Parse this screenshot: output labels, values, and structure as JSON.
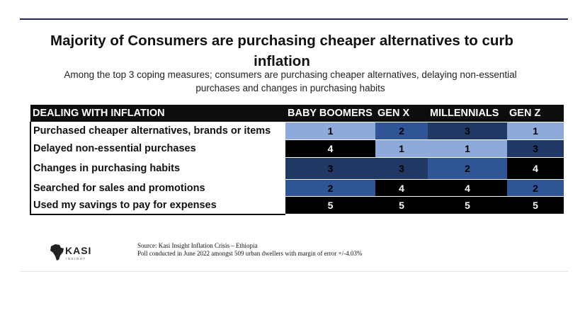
{
  "title": "Majority of Consumers are purchasing cheaper alternatives to curb inflation",
  "subtitle": "Among the top 3 coping measures; consumers are purchasing cheaper alternatives, delaying non-essential purchases and changes in purchasing habits",
  "chart_data": {
    "type": "table",
    "header": "DEALING WITH INFLATION",
    "columns": [
      "BABY BOOMERS",
      "GEN X",
      "MILLENNIALS",
      "GEN Z"
    ],
    "rows": [
      {
        "label": "Purchased cheaper alternatives, brands or items",
        "values": [
          1,
          2,
          3,
          1
        ]
      },
      {
        "label": "Delayed non-essential purchases",
        "values": [
          4,
          1,
          1,
          3
        ]
      },
      {
        "label": "Changes in purchasing habits",
        "values": [
          3,
          3,
          2,
          4
        ]
      },
      {
        "label": "Searched for sales and promotions",
        "values": [
          2,
          4,
          4,
          2
        ]
      },
      {
        "label": "Used my savings to pay for expenses",
        "values": [
          5,
          5,
          5,
          5
        ]
      }
    ],
    "rank_colors": {
      "1": "#8eaadb",
      "2": "#2f5597",
      "3": "#1f3864",
      "4": "#000000",
      "5": "#000000"
    },
    "rank_text_colors": {
      "1": "#000000",
      "2": "#000000",
      "3": "#000000",
      "4": "#ffffff",
      "5": "#ffffff"
    }
  },
  "logo": {
    "icon": "africa-map-icon",
    "text": "KASI",
    "tagline": "INSIGHT"
  },
  "source": {
    "line1": "Source: Kasi Insight Inflation Crisis – Ethiopia",
    "line2": "Poll conducted in June 2022 amongst 509 urban dwellers with margin of error +/-4.03%"
  }
}
